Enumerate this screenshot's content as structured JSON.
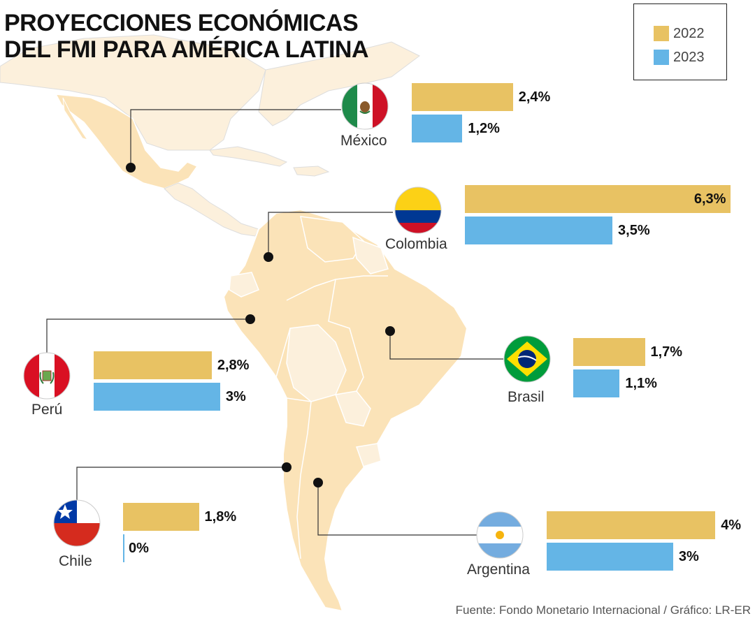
{
  "title_lines": [
    "PROYECCIONES ECONÓMICAS",
    "DEL FMI PARA AMÉRICA LATINA"
  ],
  "source": "Fuente: Fondo Monetario Internacional / Gráfico: LR-ER",
  "colors": {
    "y2022": "#e8c263",
    "y2023": "#64b5e6",
    "land": "#fbe3b8",
    "land_light": "#fcf0dc",
    "sea": "#ffffff",
    "border": "#ffffff",
    "line": "#333333"
  },
  "chart_data": {
    "type": "bar",
    "legend": [
      {
        "name": "2022",
        "color": "#e8c263"
      },
      {
        "name": "2023",
        "color": "#64b5e6"
      }
    ],
    "unit": "%",
    "countries": [
      {
        "name": "México",
        "flag": "mexico-flag-icon",
        "v2022": 2.4,
        "v2023": 1.2,
        "l2022": "2,4%",
        "l2023": "1,2%"
      },
      {
        "name": "Colombia",
        "flag": "colombia-flag-icon",
        "v2022": 6.3,
        "v2023": 3.5,
        "l2022": "6,3%",
        "l2023": "3,5%"
      },
      {
        "name": "Perú",
        "flag": "peru-flag-icon",
        "v2022": 2.8,
        "v2023": 3,
        "l2022": "2,8%",
        "l2023": "3%"
      },
      {
        "name": "Brasil",
        "flag": "brazil-flag-icon",
        "v2022": 1.7,
        "v2023": 1.1,
        "l2022": "1,7%",
        "l2023": "1,1%"
      },
      {
        "name": "Chile",
        "flag": "chile-flag-icon",
        "v2022": 1.8,
        "v2023": 0,
        "l2022": "1,8%",
        "l2023": "0%"
      },
      {
        "name": "Argentina",
        "flag": "argentina-flag-icon",
        "v2022": 4,
        "v2023": 3,
        "l2022": "4%",
        "l2023": "3%"
      }
    ]
  }
}
